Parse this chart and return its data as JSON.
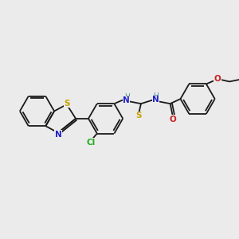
{
  "background_color": "#ebebeb",
  "bond_color": "#1a1a1a",
  "atom_colors": {
    "S": "#c8a000",
    "N": "#2020cc",
    "O": "#cc2020",
    "Cl": "#22aa22",
    "C": "#1a1a1a",
    "H": "#4a9090"
  },
  "figsize": [
    3.0,
    3.0
  ],
  "dpi": 100
}
